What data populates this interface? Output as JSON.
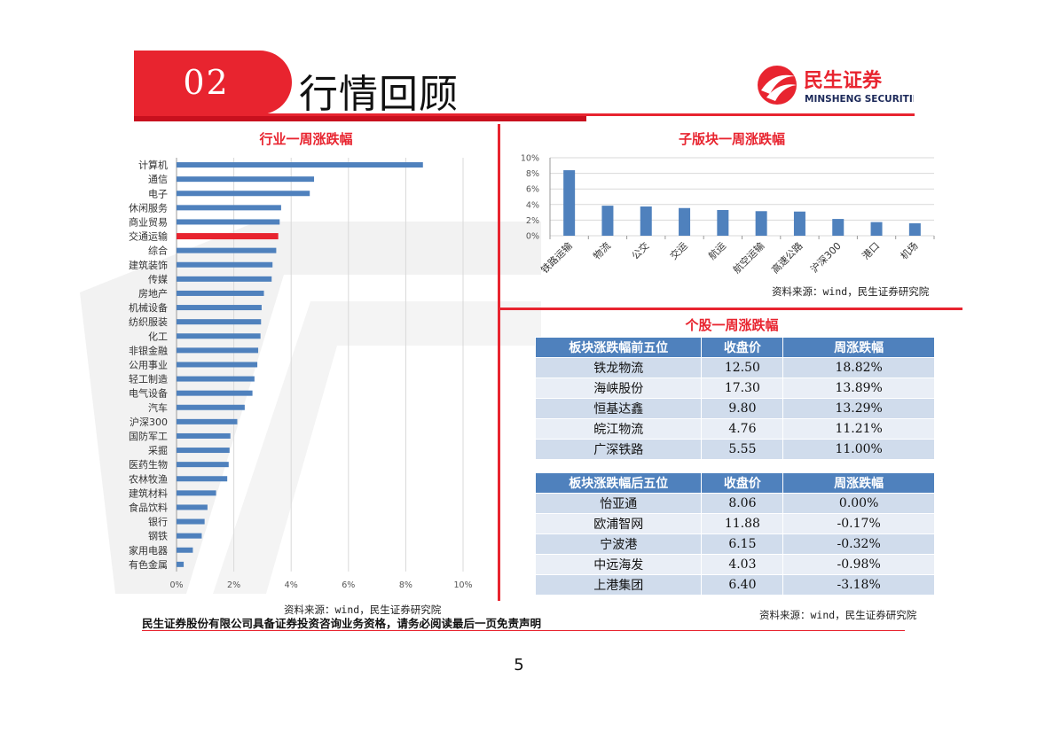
{
  "header": {
    "section_number": "02",
    "section_title": "行情回顾",
    "brand_cn": "民生证券",
    "brand_en": "MINSHENG SECURITIES"
  },
  "colors": {
    "accent": "#e8242f",
    "bar": "#4f81bd",
    "highlight_bar": "#e8242f",
    "table_header": "#4f81bd"
  },
  "industry_chart": {
    "title": "行业一周涨跌幅",
    "source": "资料来源：wind，民生证券研究院",
    "chart_data": {
      "type": "bar",
      "orientation": "horizontal",
      "categories": [
        "计算机",
        "通信",
        "电子",
        "休闲服务",
        "商业贸易",
        "交通运输",
        "综合",
        "建筑装饰",
        "传媒",
        "房地产",
        "机械设备",
        "纺织服装",
        "化工",
        "非银金融",
        "公用事业",
        "轻工制造",
        "电气设备",
        "汽车",
        "沪深300",
        "国防军工",
        "采掘",
        "医药生物",
        "农林牧渔",
        "建筑材料",
        "食品饮料",
        "银行",
        "钢铁",
        "家用电器",
        "有色金属"
      ],
      "values": [
        8.6,
        4.8,
        4.65,
        3.65,
        3.6,
        3.55,
        3.48,
        3.35,
        3.32,
        3.05,
        2.97,
        2.95,
        2.93,
        2.85,
        2.82,
        2.72,
        2.65,
        2.38,
        2.12,
        1.88,
        1.85,
        1.82,
        1.77,
        1.38,
        1.08,
        0.98,
        0.88,
        0.57,
        0.25
      ],
      "highlight": "交通运输",
      "xlim": [
        0,
        10
      ],
      "ticks": [
        "0%",
        "2%",
        "4%",
        "6%",
        "8%",
        "10%"
      ],
      "grid": true
    }
  },
  "sub_chart": {
    "title": "子版块一周涨跌幅",
    "source": "资料来源：wind，民生证券研究院",
    "chart_data": {
      "type": "bar",
      "categories": [
        "铁路运输",
        "物流",
        "公交",
        "交运",
        "航运",
        "航空运输",
        "高速公路",
        "沪深300",
        "港口",
        "机场"
      ],
      "values": [
        8.4,
        3.85,
        3.75,
        3.55,
        3.3,
        3.15,
        3.1,
        2.15,
        1.75,
        1.6
      ],
      "ylim": [
        0,
        10
      ],
      "ticks": [
        "0%",
        "2%",
        "4%",
        "6%",
        "8%",
        "10%"
      ],
      "grid": true
    }
  },
  "stocks": {
    "title": "个股一周涨跌幅",
    "source": "资料来源：wind，民生证券研究院",
    "top": {
      "headers": [
        "板块涨跌幅前五位",
        "收盘价",
        "周涨跌幅"
      ],
      "rows": [
        [
          "铁龙物流",
          "12.50",
          "18.82%"
        ],
        [
          "海峡股份",
          "17.30",
          "13.89%"
        ],
        [
          "恒基达鑫",
          "9.80",
          "13.29%"
        ],
        [
          "皖江物流",
          "4.76",
          "11.21%"
        ],
        [
          "广深铁路",
          "5.55",
          "11.00%"
        ]
      ]
    },
    "bottom": {
      "headers": [
        "板块涨跌幅后五位",
        "收盘价",
        "周涨跌幅"
      ],
      "rows": [
        [
          "怡亚通",
          "8.06",
          "0.00%"
        ],
        [
          "欧浦智网",
          "11.88",
          "-0.17%"
        ],
        [
          "宁波港",
          "6.15",
          "-0.32%"
        ],
        [
          "中远海发",
          "4.03",
          "-0.98%"
        ],
        [
          "上港集团",
          "6.40",
          "-3.18%"
        ]
      ]
    }
  },
  "footer": {
    "disclaimer": "民生证券股份有限公司具备证券投资咨询业务资格，请务必阅读最后一页免责声明",
    "page_number": "5"
  }
}
